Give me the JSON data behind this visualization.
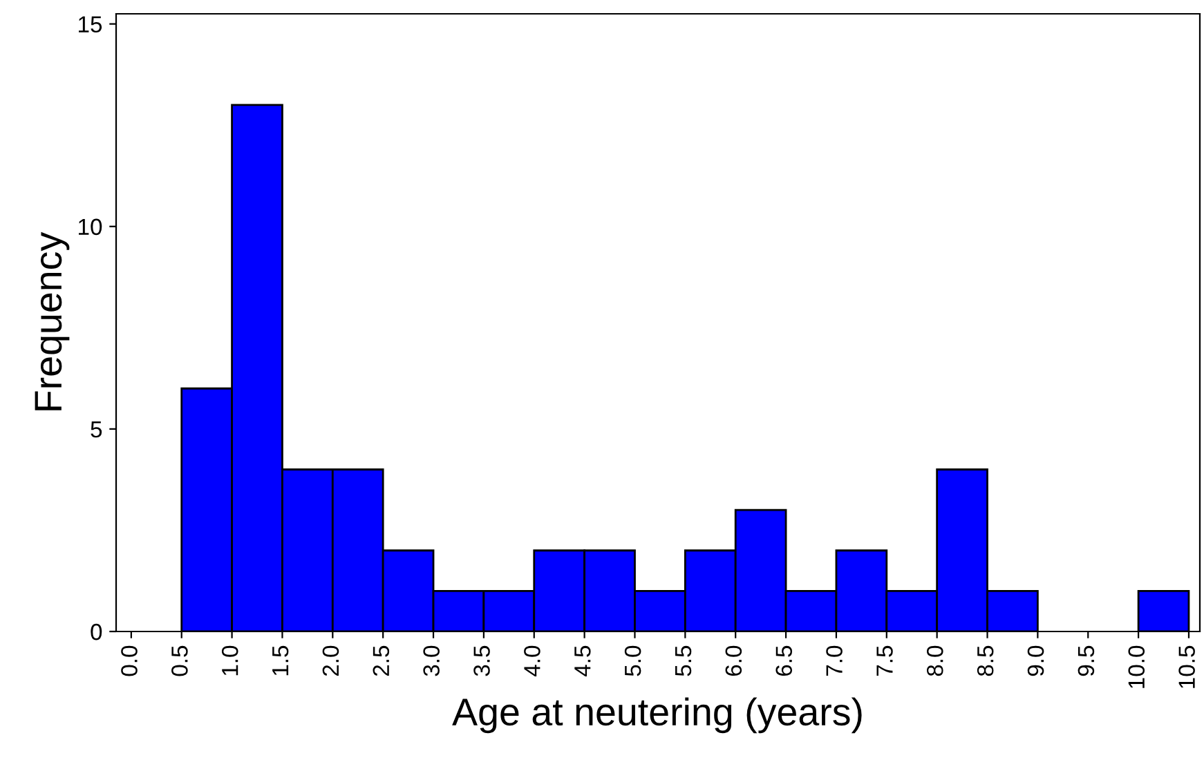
{
  "chart_data": {
    "type": "histogram",
    "xlabel": "Age at neutering (years)",
    "ylabel": "Frequency",
    "bins": [
      0.5,
      1.0,
      1.5,
      2.0,
      2.5,
      3.0,
      3.5,
      4.0,
      4.5,
      5.0,
      5.5,
      6.0,
      6.5,
      7.0,
      7.5,
      8.0,
      8.5,
      9.0,
      9.5,
      10.0,
      10.5
    ],
    "values": [
      6,
      13,
      4,
      4,
      2,
      1,
      1,
      2,
      2,
      1,
      2,
      3,
      1,
      2,
      1,
      4,
      1,
      0,
      0,
      1
    ],
    "color": "#0000ff",
    "xlim": [
      -0.15,
      10.61
    ],
    "ylim": [
      0,
      15.25
    ],
    "xticks": [
      {
        "value": 0,
        "label": "0.0"
      },
      {
        "value": 0.5,
        "label": "0.5"
      },
      {
        "value": 1,
        "label": "1.0"
      },
      {
        "value": 1.5,
        "label": "1.5"
      },
      {
        "value": 2,
        "label": "2.0"
      },
      {
        "value": 2.5,
        "label": "2.5"
      },
      {
        "value": 3,
        "label": "3.0"
      },
      {
        "value": 3.5,
        "label": "3.5"
      },
      {
        "value": 4,
        "label": "4.0"
      },
      {
        "value": 4.5,
        "label": "4.5"
      },
      {
        "value": 5,
        "label": "5.0"
      },
      {
        "value": 5.5,
        "label": "5.5"
      },
      {
        "value": 6,
        "label": "6.0"
      },
      {
        "value": 6.5,
        "label": "6.5"
      },
      {
        "value": 7,
        "label": "7.0"
      },
      {
        "value": 7.5,
        "label": "7.5"
      },
      {
        "value": 8,
        "label": "8.0"
      },
      {
        "value": 8.5,
        "label": "8.5"
      },
      {
        "value": 9,
        "label": "9.0"
      },
      {
        "value": 9.5,
        "label": "9.5"
      },
      {
        "value": 10,
        "label": "10.0"
      },
      {
        "value": 10.5,
        "label": "10.5"
      }
    ],
    "yticks": [
      0,
      5,
      10,
      15
    ],
    "grid": false
  }
}
